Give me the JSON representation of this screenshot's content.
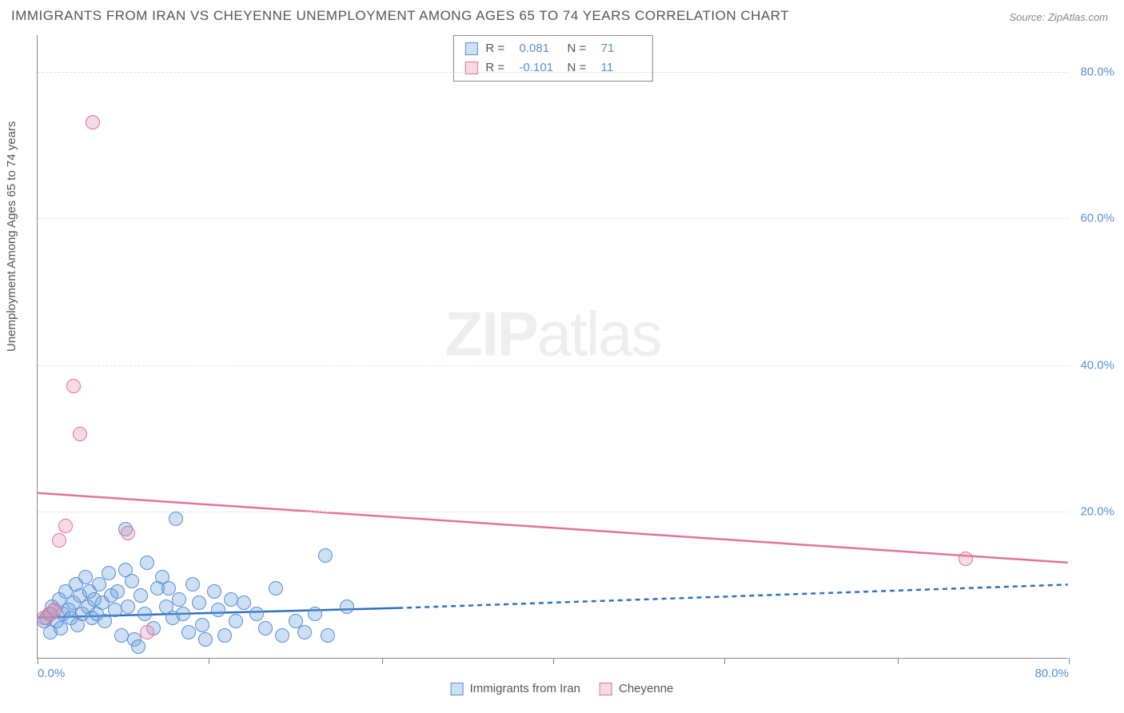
{
  "title": "IMMIGRANTS FROM IRAN VS CHEYENNE UNEMPLOYMENT AMONG AGES 65 TO 74 YEARS CORRELATION CHART",
  "source": "Source: ZipAtlas.com",
  "ylabel": "Unemployment Among Ages 65 to 74 years",
  "watermark_a": "ZIP",
  "watermark_b": "atlas",
  "chart": {
    "type": "scatter",
    "xlim": [
      0,
      80
    ],
    "ylim": [
      0,
      85
    ],
    "xtick_positions": [
      0,
      13.3,
      26.7,
      40,
      53.3,
      66.7,
      80
    ],
    "xtick_labels_shown": {
      "0": "0.0%",
      "80": "80.0%"
    },
    "ytick_positions": [
      20,
      40,
      60,
      80
    ],
    "ytick_labels": [
      "20.0%",
      "40.0%",
      "60.0%",
      "80.0%"
    ],
    "grid_color": "#dddddd",
    "axis_color": "#888888",
    "tick_label_color": "#5b8dd6",
    "background_color": "#ffffff",
    "point_radius": 9,
    "series": {
      "blue": {
        "label": "Immigrants from Iran",
        "fill": "rgba(108,162,220,0.35)",
        "stroke": "#5b8dd6",
        "R": "0.081",
        "N": "71",
        "trend": {
          "solid": {
            "x1": 0,
            "y1": 5.5,
            "x2": 28,
            "y2": 6.8
          },
          "dashed": {
            "x1": 28,
            "y1": 6.8,
            "x2": 80,
            "y2": 10.0
          },
          "color": "#2f6fc4",
          "width": 2.5
        },
        "points": [
          [
            0.5,
            5
          ],
          [
            0.7,
            5.5
          ],
          [
            0.9,
            6
          ],
          [
            1,
            3.5
          ],
          [
            1.1,
            7
          ],
          [
            1.3,
            6.5
          ],
          [
            1.5,
            5
          ],
          [
            1.7,
            8
          ],
          [
            1.8,
            4
          ],
          [
            2,
            6
          ],
          [
            2.2,
            9
          ],
          [
            2.4,
            6.5
          ],
          [
            2.6,
            5.5
          ],
          [
            2.8,
            7.5
          ],
          [
            3,
            10
          ],
          [
            3.1,
            4.5
          ],
          [
            3.3,
            8.5
          ],
          [
            3.5,
            6
          ],
          [
            3.7,
            11
          ],
          [
            3.9,
            7
          ],
          [
            4,
            9
          ],
          [
            4.2,
            5.5
          ],
          [
            4.4,
            8
          ],
          [
            4.6,
            6
          ],
          [
            4.8,
            10
          ],
          [
            5,
            7.5
          ],
          [
            5.2,
            5
          ],
          [
            5.5,
            11.5
          ],
          [
            5.7,
            8.5
          ],
          [
            6,
            6.5
          ],
          [
            6.2,
            9
          ],
          [
            6.5,
            3
          ],
          [
            6.8,
            12
          ],
          [
            7,
            7
          ],
          [
            7.3,
            10.5
          ],
          [
            7.5,
            2.5
          ],
          [
            7.8,
            1.5
          ],
          [
            8,
            8.5
          ],
          [
            8.3,
            6
          ],
          [
            8.5,
            13
          ],
          [
            6.8,
            17.5
          ],
          [
            9,
            4
          ],
          [
            9.3,
            9.5
          ],
          [
            9.7,
            11
          ],
          [
            10,
            7
          ],
          [
            10.2,
            9.5
          ],
          [
            10.5,
            5.5
          ],
          [
            11,
            8
          ],
          [
            11.3,
            6
          ],
          [
            11.7,
            3.5
          ],
          [
            12,
            10
          ],
          [
            12.5,
            7.5
          ],
          [
            12.8,
            4.5
          ],
          [
            13,
            2.5
          ],
          [
            13.7,
            9
          ],
          [
            14,
            6.5
          ],
          [
            14.5,
            3
          ],
          [
            15,
            8
          ],
          [
            15.4,
            5
          ],
          [
            16,
            7.5
          ],
          [
            10.7,
            19
          ],
          [
            17,
            6
          ],
          [
            17.7,
            4
          ],
          [
            18.5,
            9.5
          ],
          [
            19,
            3
          ],
          [
            22.3,
            14
          ],
          [
            20,
            5
          ],
          [
            20.7,
            3.5
          ],
          [
            21.5,
            6
          ],
          [
            22.5,
            3
          ],
          [
            24,
            7
          ]
        ]
      },
      "pink": {
        "label": "Cheyenne",
        "fill": "rgba(235,150,175,0.35)",
        "stroke": "#e27396",
        "R": "-0.101",
        "N": "11",
        "trend": {
          "solid": {
            "x1": 0,
            "y1": 22.5,
            "x2": 80,
            "y2": 13
          },
          "color": "#e27396",
          "width": 2.5
        },
        "points": [
          [
            0.5,
            5.5
          ],
          [
            1,
            6
          ],
          [
            1.7,
            16
          ],
          [
            2.2,
            18
          ],
          [
            2.8,
            37
          ],
          [
            3.3,
            30.5
          ],
          [
            4.3,
            73
          ],
          [
            7,
            17
          ],
          [
            8.5,
            3.5
          ],
          [
            72,
            13.5
          ],
          [
            1.3,
            6.5
          ]
        ]
      }
    }
  },
  "legend_bottom": [
    {
      "label": "Immigrants from Iran",
      "fill": "rgba(108,162,220,0.35)",
      "stroke": "#5b8dd6"
    },
    {
      "label": "Cheyenne",
      "fill": "rgba(235,150,175,0.35)",
      "stroke": "#e27396"
    }
  ]
}
